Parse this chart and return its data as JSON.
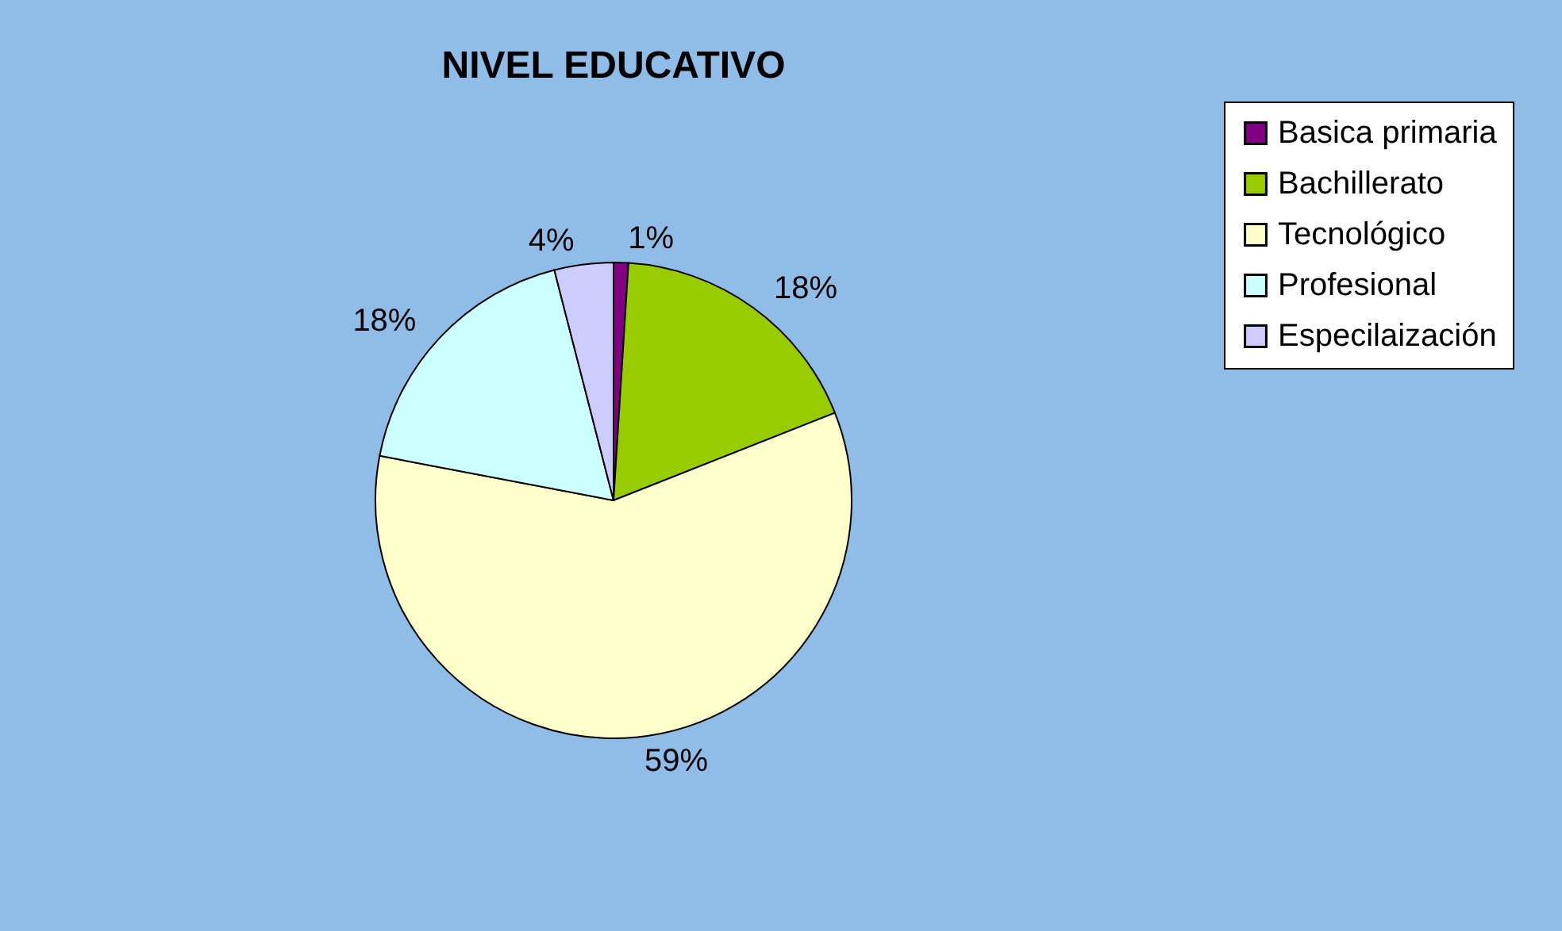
{
  "chart_data": {
    "type": "pie",
    "title": "NIVEL EDUCATIVO",
    "categories": [
      "Basica primaria",
      "Bachillerato",
      "Tecnológico",
      "Profesional",
      "Especilaización"
    ],
    "values": [
      1,
      18,
      59,
      18,
      4
    ],
    "value_labels": [
      "1%",
      "18%",
      "59%",
      "18%",
      "4%"
    ],
    "colors": [
      "#800080",
      "#99cc00",
      "#ffffcc",
      "#ccffff",
      "#ccccff"
    ],
    "legend": "right"
  }
}
